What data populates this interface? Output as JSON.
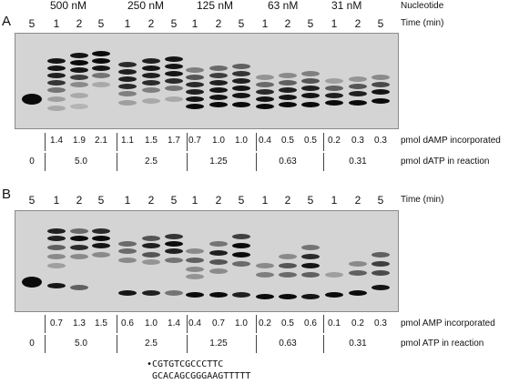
{
  "header": {
    "concentrations": [
      "500 nM",
      "250 nM",
      "125 nM",
      "63 nM",
      "31 nM"
    ],
    "nucleotide_label": "Nucleotide"
  },
  "time_label": "Time (min)",
  "lane_labels": [
    "5",
    "1",
    "2",
    "5",
    "1",
    "2",
    "5",
    "1",
    "2",
    "5",
    "1",
    "2",
    "5",
    "1",
    "2",
    "5"
  ],
  "panel_a": {
    "letter": "A",
    "incorporated": [
      "1.4",
      "1.9",
      "2.1",
      "1.1",
      "1.5",
      "1.7",
      "0.7",
      "1.0",
      "1.0",
      "0.4",
      "0.5",
      "0.5",
      "0.2",
      "0.3",
      "0.3"
    ],
    "incorporated_label": "pmol dAMP incorporated",
    "reaction": [
      "0",
      "5.0",
      "2.5",
      "1.25",
      "0.63",
      "0.31"
    ],
    "reaction_label": "pmol dATP in reaction"
  },
  "panel_b": {
    "letter": "B",
    "incorporated": [
      "0.7",
      "1.3",
      "1.5",
      "0.6",
      "1.0",
      "1.4",
      "0.4",
      "0.7",
      "1.0",
      "0.2",
      "0.5",
      "0.6",
      "0.1",
      "0.2",
      "0.3"
    ],
    "incorporated_label": "pmol AMP incorporated",
    "reaction": [
      "0",
      "5.0",
      "2.5",
      "1.25",
      "0.63",
      "0.31"
    ],
    "reaction_label": "pmol ATP in reaction"
  },
  "sequence": {
    "marker": "•",
    "top": "CGTGTCGCCCTTC",
    "bottom": "GCACAGCGGGAAGTTTTT"
  }
}
